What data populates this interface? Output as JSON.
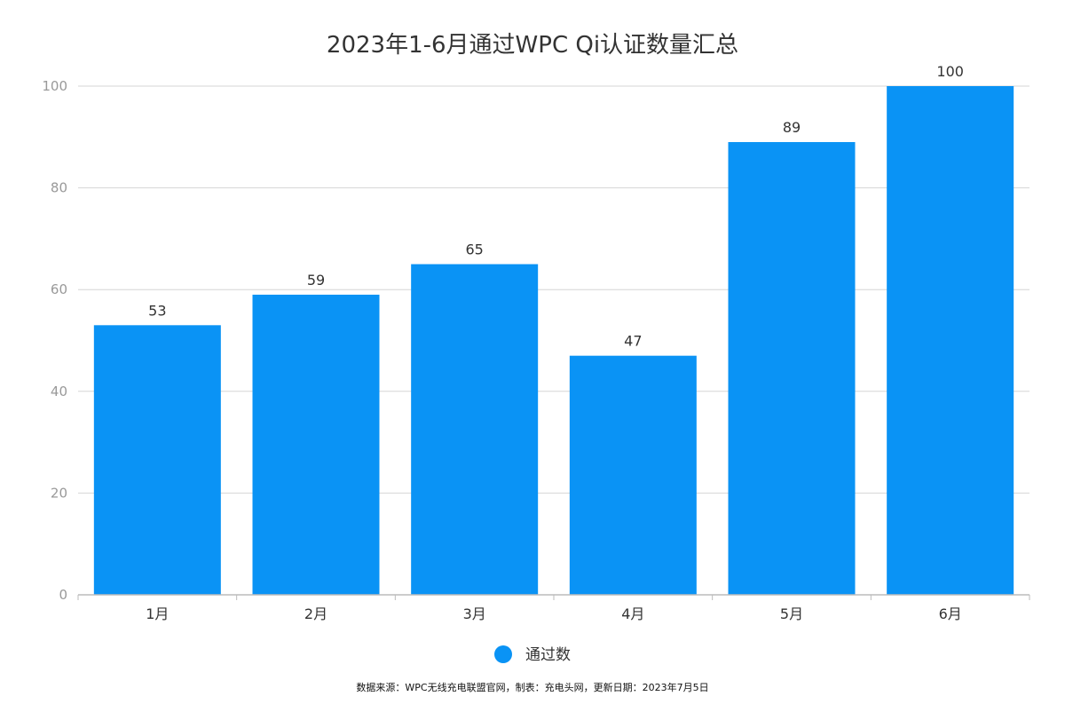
{
  "chart_data": {
    "type": "bar",
    "title": "2023年1-6月通过WPC Qi认证数量汇总",
    "categories": [
      "1月",
      "2月",
      "3月",
      "4月",
      "5月",
      "6月"
    ],
    "series": [
      {
        "name": "通过数",
        "values": [
          53,
          59,
          65,
          47,
          89,
          100
        ],
        "color": "#0a93f5"
      }
    ],
    "ylim": [
      0,
      100
    ],
    "yticks": [
      0,
      20,
      40,
      60,
      80,
      100
    ],
    "grid": true,
    "data_labels": true,
    "legend_position": "bottom-center"
  },
  "footer": {
    "source_note": "数据来源：WPC无线充电联盟官网，制表：充电头网，更新日期：2023年7月5日"
  },
  "colors": {
    "bar": "#0a93f5",
    "gridline": "#d6d6d6",
    "axis": "#bbbbbb"
  }
}
